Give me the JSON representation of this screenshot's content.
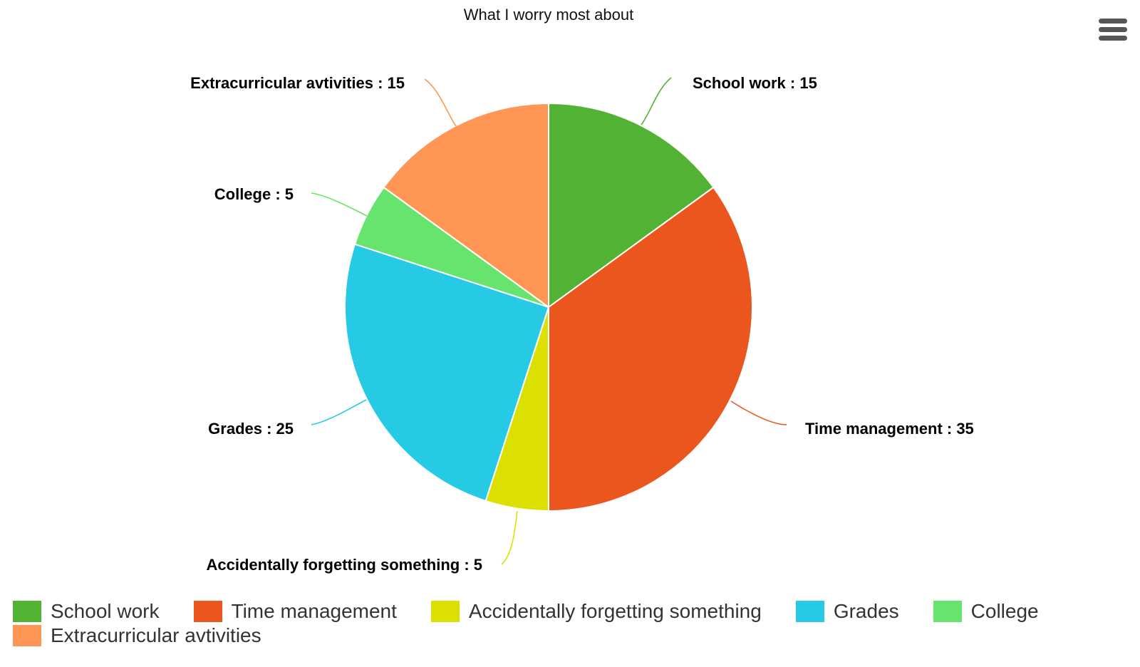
{
  "chart_data": {
    "type": "pie",
    "title": "What I worry most about",
    "slices": [
      {
        "name": "School work",
        "value": 15,
        "color": "#52b233",
        "label": "School work : 15"
      },
      {
        "name": "Time management",
        "value": 35,
        "color": "#eb561e",
        "label": "Time management : 35"
      },
      {
        "name": "Accidentally forgetting something",
        "value": 5,
        "color": "#dce000",
        "label": "Accidentally forgetting something : 5"
      },
      {
        "name": "Grades",
        "value": 25,
        "color": "#26cae4",
        "label": "Grades : 25"
      },
      {
        "name": "College",
        "value": 5,
        "color": "#66e46e",
        "label": "College : 5"
      },
      {
        "name": "Extracurricular avtivities",
        "value": 15,
        "color": "#ff9655",
        "label": "Extracurricular avtivities : 15"
      }
    ],
    "legend_position": "bottom"
  },
  "toolbar": {
    "menu_icon": "hamburger-menu-icon"
  }
}
